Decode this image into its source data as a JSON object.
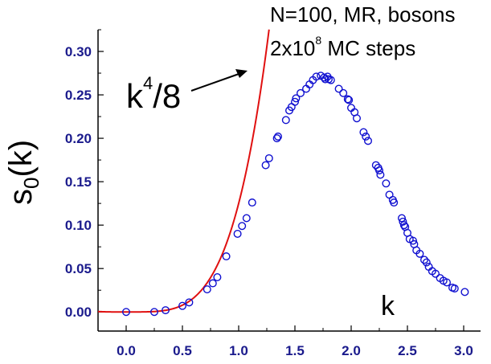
{
  "chart_data": {
    "type": "scatter",
    "ylabel": "s0(k)",
    "xlabel": "k",
    "xlim": [
      -0.25,
      3.15
    ],
    "ylim": [
      -0.022,
      0.325
    ],
    "xticks": [
      "0.0",
      "0.5",
      "1.0",
      "1.5",
      "2.0",
      "2.5",
      "3.0"
    ],
    "yticks": [
      "0.00",
      "0.05",
      "0.10",
      "0.15",
      "0.20",
      "0.25",
      "0.30"
    ],
    "annotation_line1": "N=100, MR, bosons",
    "annotation_line2_prefix": "2x10",
    "annotation_line2_sup": "8",
    "annotation_line2_suffix": " MC steps",
    "curve_label_base": "k",
    "curve_label_sup": "4",
    "curve_label_suffix": "/8",
    "curve_color": "#e01010",
    "marker_color": "#1010d0",
    "series": [
      {
        "marker": "open-circle",
        "x": [
          0.0,
          0.25,
          0.35,
          0.5,
          0.56,
          0.72,
          0.77,
          0.81,
          0.89,
          0.99,
          1.03,
          1.07,
          1.12,
          1.24,
          1.27,
          1.34,
          1.35,
          1.42,
          1.45,
          1.47,
          1.5,
          1.51,
          1.55,
          1.6,
          1.63,
          1.66,
          1.69,
          1.73,
          1.76,
          1.77,
          1.79,
          1.8,
          1.82,
          1.89,
          1.93,
          1.97,
          1.98,
          2.0,
          2.03,
          2.05,
          2.11,
          2.13,
          2.15,
          2.22,
          2.24,
          2.25,
          2.26,
          2.31,
          2.34,
          2.37,
          2.38,
          2.45,
          2.46,
          2.47,
          2.48,
          2.5,
          2.52,
          2.55,
          2.56,
          2.58,
          2.61,
          2.65,
          2.67,
          2.69,
          2.72,
          2.75,
          2.79,
          2.82,
          2.85,
          2.9,
          2.92,
          3.01
        ],
        "y": [
          0.0,
          0.0,
          0.002,
          0.007,
          0.011,
          0.026,
          0.033,
          0.04,
          0.064,
          0.09,
          0.099,
          0.108,
          0.126,
          0.169,
          0.177,
          0.2,
          0.202,
          0.221,
          0.232,
          0.236,
          0.242,
          0.246,
          0.252,
          0.257,
          0.262,
          0.267,
          0.271,
          0.272,
          0.27,
          0.268,
          0.271,
          0.268,
          0.267,
          0.257,
          0.252,
          0.245,
          0.244,
          0.235,
          0.23,
          0.223,
          0.207,
          0.202,
          0.197,
          0.169,
          0.166,
          0.163,
          0.158,
          0.148,
          0.135,
          0.129,
          0.126,
          0.108,
          0.104,
          0.1,
          0.098,
          0.091,
          0.084,
          0.082,
          0.078,
          0.071,
          0.067,
          0.06,
          0.057,
          0.052,
          0.047,
          0.044,
          0.039,
          0.036,
          0.034,
          0.028,
          0.027,
          0.023
        ]
      }
    ]
  }
}
